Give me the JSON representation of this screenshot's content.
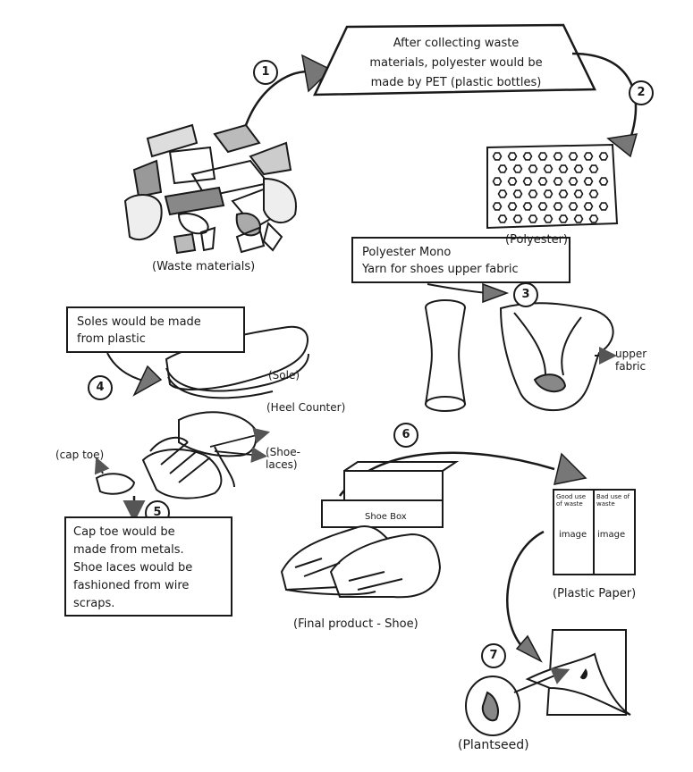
{
  "step1_text": [
    "After collecting waste",
    "materials, polyester would be",
    "made by PET (plastic bottles)"
  ],
  "step3_text": [
    "Polyester Mono",
    "Yarn for shoes upper fabric"
  ],
  "step4_text": [
    "Soles would be made",
    "from plastic"
  ],
  "step5_text": [
    "Cap toe would be",
    "made from metals.",
    "Shoe laces would be",
    "fashioned from wire",
    "scraps."
  ],
  "labels": {
    "waste_materials": "(Waste materials)",
    "polyester": "(Polyester)",
    "sole": "(Sole)",
    "heel_counter": "(Heel Counter)",
    "shoe_laces": "(Shoe-\nlaces)",
    "cap_toe": "(cap toe)",
    "upper_fabric": "upper\nfabric",
    "shoe_box": "Shoe Box",
    "final_product": "(Final product - Shoe)",
    "plastic_paper": "(Plastic Paper)",
    "plant_seed": "(Plantseed)",
    "paper_left": "Good use of waste",
    "paper_right": "Bad use of waste",
    "paper_image_left": "image",
    "paper_image_right": "image"
  },
  "steps": [
    "1",
    "2",
    "3",
    "4",
    "5",
    "6",
    "7"
  ]
}
